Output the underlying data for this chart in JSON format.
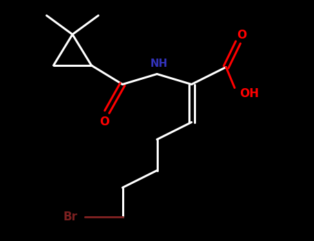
{
  "background_color": "#000000",
  "bond_color": "#ffffff",
  "bond_width": 2.2,
  "atom_colors": {
    "O": "#ff0000",
    "N": "#3333bb",
    "Br": "#7b2020",
    "C": "#808080"
  },
  "font_size_atom": 12,
  "font_size_nh": 11
}
